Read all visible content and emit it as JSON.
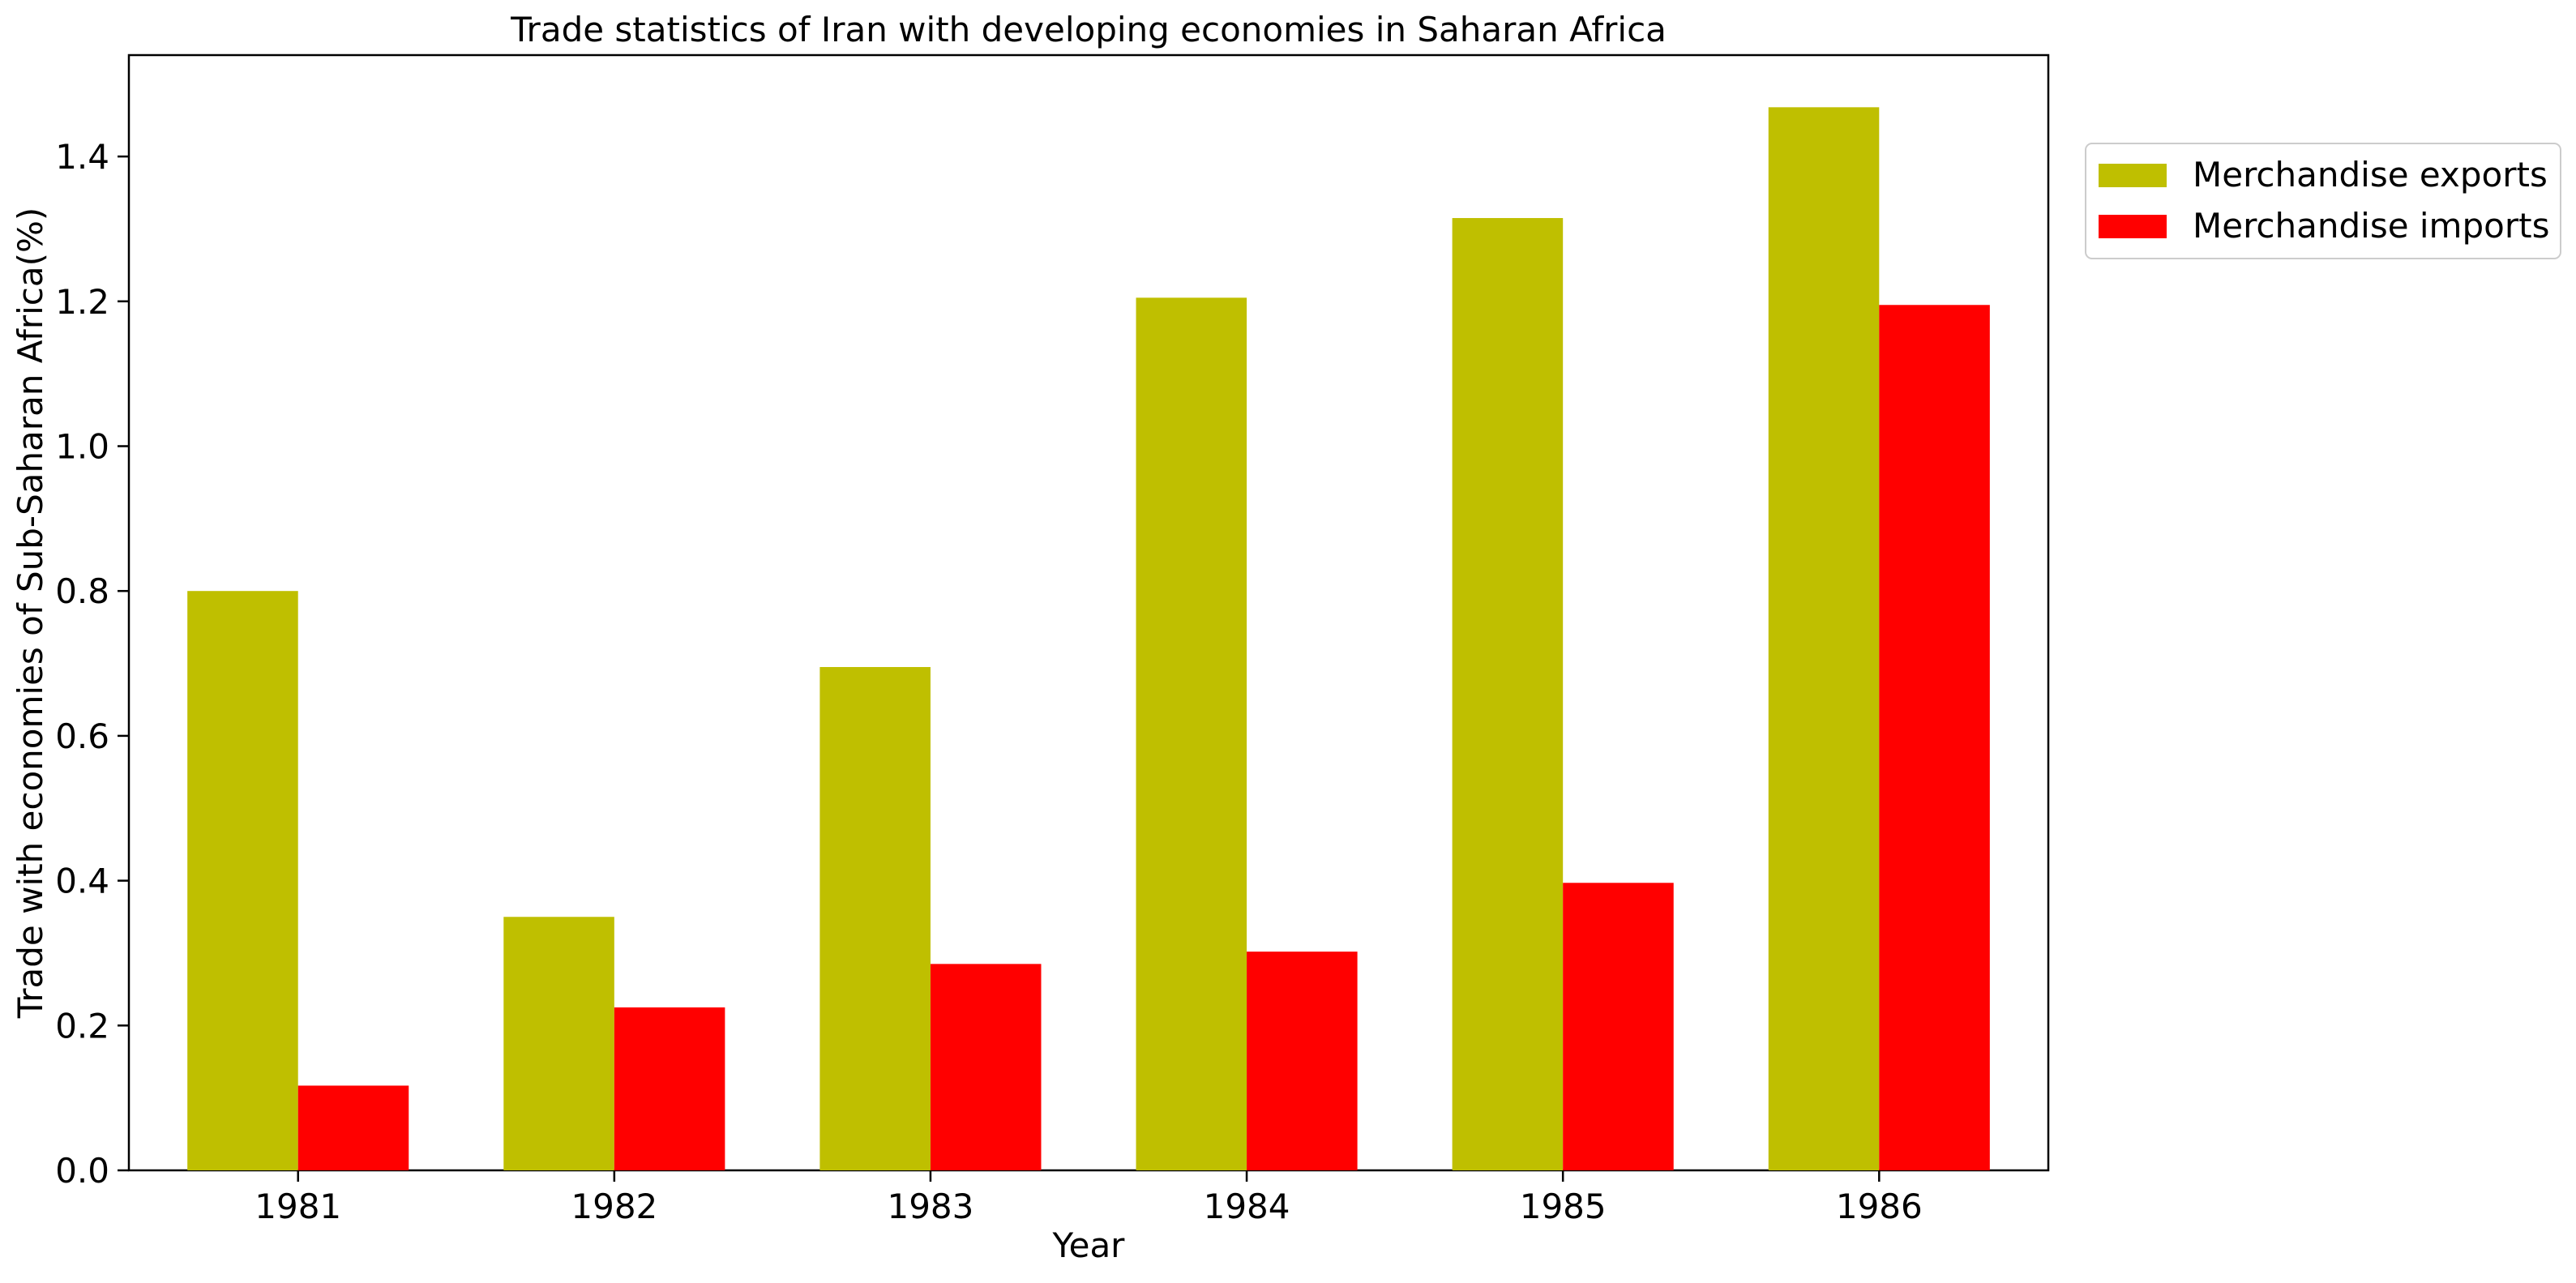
{
  "chart_data": {
    "type": "bar",
    "title": "Trade statistics of Iran with developing economies in Saharan Africa",
    "xlabel": "Year",
    "ylabel": "Trade with economies of Sub-Saharan Africa(%)",
    "categories": [
      "1981",
      "1982",
      "1983",
      "1984",
      "1985",
      "1986"
    ],
    "series": [
      {
        "name": "Merchandise exports",
        "color": "#bfbf00",
        "values": [
          0.8,
          0.35,
          0.695,
          1.205,
          1.315,
          1.468
        ]
      },
      {
        "name": "Merchandise imports",
        "color": "#ff0000",
        "values": [
          0.117,
          0.225,
          0.285,
          0.302,
          0.397,
          1.195
        ]
      }
    ],
    "ylim": [
      0,
      1.54
    ],
    "yticks": [
      "0.0",
      "0.2",
      "0.4",
      "0.6",
      "0.8",
      "1.0",
      "1.2",
      "1.4"
    ],
    "grid": false,
    "legend_position": "outside top-right"
  }
}
